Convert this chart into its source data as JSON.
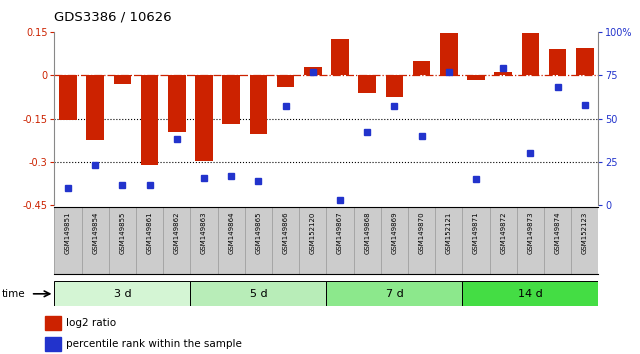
{
  "title": "GDS3386 / 10626",
  "samples": [
    "GSM149851",
    "GSM149854",
    "GSM149855",
    "GSM149861",
    "GSM149862",
    "GSM149863",
    "GSM149864",
    "GSM149865",
    "GSM149866",
    "GSM152120",
    "GSM149867",
    "GSM149868",
    "GSM149869",
    "GSM149870",
    "GSM152121",
    "GSM149871",
    "GSM149872",
    "GSM149873",
    "GSM149874",
    "GSM152123"
  ],
  "log2_ratio": [
    -0.155,
    -0.225,
    -0.03,
    -0.31,
    -0.195,
    -0.295,
    -0.17,
    -0.205,
    -0.04,
    0.03,
    0.125,
    -0.06,
    -0.075,
    0.05,
    0.145,
    -0.015,
    0.01,
    0.145,
    0.09,
    0.095
  ],
  "percentile": [
    10,
    23,
    12,
    12,
    38,
    16,
    17,
    14,
    57,
    77,
    3,
    42,
    57,
    40,
    77,
    15,
    79,
    30,
    68,
    58
  ],
  "groups": [
    {
      "label": "3 d",
      "start": 0,
      "end": 5,
      "color": "#d4f5d4"
    },
    {
      "label": "5 d",
      "start": 5,
      "end": 10,
      "color": "#b8edb8"
    },
    {
      "label": "7 d",
      "start": 10,
      "end": 15,
      "color": "#8ce88c"
    },
    {
      "label": "14 d",
      "start": 15,
      "end": 20,
      "color": "#44dd44"
    }
  ],
  "bar_color": "#cc2200",
  "dot_color": "#2233cc",
  "dashed_line_color": "#cc2200",
  "left_ylim": [
    -0.45,
    0.15
  ],
  "right_ylim": [
    0,
    100
  ],
  "left_yticks": [
    -0.45,
    -0.3,
    -0.15,
    0,
    0.15
  ],
  "left_yticklabels": [
    "-0.45",
    "-0.3",
    "-0.15",
    "0",
    "0.15"
  ],
  "right_yticks": [
    0,
    25,
    50,
    75,
    100
  ],
  "right_yticklabels": [
    "0",
    "25",
    "50",
    "75",
    "100%"
  ],
  "dotted_lines": [
    -0.15,
    -0.3
  ],
  "legend_bar_label": "log2 ratio",
  "legend_dot_label": "percentile rank within the sample",
  "bg_color": "#ffffff"
}
